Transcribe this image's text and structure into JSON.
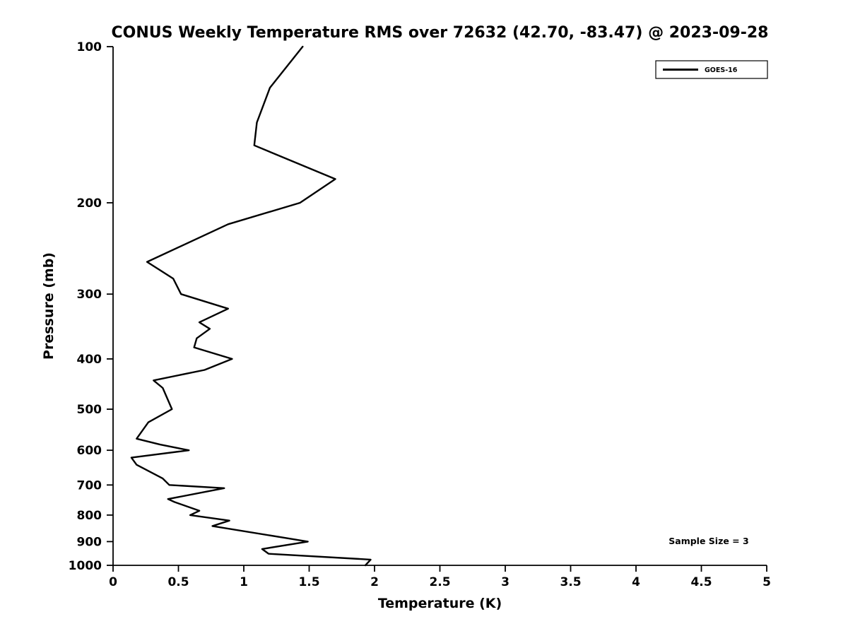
{
  "figure": {
    "background_color": "#ffffff",
    "foreground_color": "#000000"
  },
  "chart_data": {
    "type": "line",
    "title": "CONUS Weekly Temperature RMS over 72632 (42.70, -83.47) @ 2023-09-28",
    "xlabel": "Temperature (K)",
    "ylabel": "Pressure (mb)",
    "xlim": [
      0,
      5
    ],
    "ylim": [
      100,
      1000
    ],
    "yscale": "log",
    "y_axis_inverted": true,
    "grid": false,
    "xticks": [
      {
        "value": 0,
        "label": "0"
      },
      {
        "value": 0.5,
        "label": "0.5"
      },
      {
        "value": 1,
        "label": "1"
      },
      {
        "value": 1.5,
        "label": "1.5"
      },
      {
        "value": 2,
        "label": "2"
      },
      {
        "value": 2.5,
        "label": "2.5"
      },
      {
        "value": 3,
        "label": "3"
      },
      {
        "value": 3.5,
        "label": "3.5"
      },
      {
        "value": 4,
        "label": "4"
      },
      {
        "value": 4.5,
        "label": "4.5"
      },
      {
        "value": 5,
        "label": "5"
      }
    ],
    "yticks": [
      {
        "value": 100,
        "label": "100"
      },
      {
        "value": 200,
        "label": "200"
      },
      {
        "value": 300,
        "label": "300"
      },
      {
        "value": 400,
        "label": "400"
      },
      {
        "value": 500,
        "label": "500"
      },
      {
        "value": 600,
        "label": "600"
      },
      {
        "value": 700,
        "label": "700"
      },
      {
        "value": 800,
        "label": "800"
      },
      {
        "value": 900,
        "label": "900"
      },
      {
        "value": 1000,
        "label": "1000"
      }
    ],
    "legend": {
      "position": "top-right",
      "entries": [
        {
          "label": "GOES-16",
          "color": "#000000",
          "line_width": 3
        }
      ]
    },
    "annotation": "Sample Size = 3",
    "series": [
      {
        "name": "GOES-16",
        "color": "#000000",
        "pressure_mb": [
          100,
          120,
          140,
          155,
          180,
          200,
          220,
          260,
          280,
          300,
          320,
          340,
          350,
          365,
          380,
          400,
          420,
          440,
          455,
          500,
          530,
          570,
          585,
          600,
          620,
          640,
          680,
          700,
          710,
          745,
          755,
          785,
          800,
          820,
          840,
          900,
          930,
          950,
          975,
          1000
        ],
        "rms_k": [
          1.45,
          1.2,
          1.1,
          1.08,
          1.7,
          1.43,
          0.88,
          0.26,
          0.46,
          0.52,
          0.88,
          0.66,
          0.74,
          0.64,
          0.62,
          0.91,
          0.7,
          0.31,
          0.38,
          0.45,
          0.27,
          0.18,
          0.36,
          0.58,
          0.14,
          0.18,
          0.38,
          0.43,
          0.85,
          0.42,
          0.47,
          0.66,
          0.59,
          0.89,
          0.76,
          1.49,
          1.14,
          1.19,
          1.97,
          1.93
        ]
      }
    ]
  }
}
